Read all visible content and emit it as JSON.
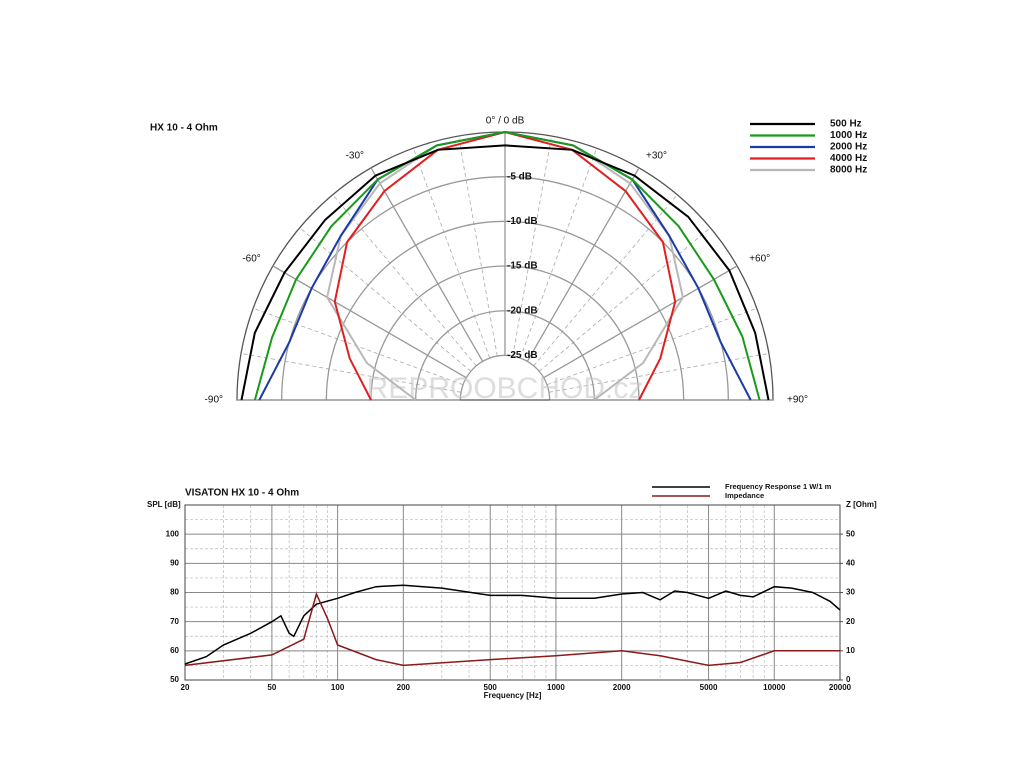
{
  "chart_data": [
    {
      "type": "polar",
      "title": "HX 10 - 4 Ohm",
      "watermark": "REPROOBCHOD.cz",
      "rlim": [
        -30,
        0
      ],
      "rticks": [
        {
          "value": -5,
          "label": "-5 dB"
        },
        {
          "value": -10,
          "label": "-10 dB"
        },
        {
          "value": -15,
          "label": "-15 dB"
        },
        {
          "value": -20,
          "label": "-20 dB"
        },
        {
          "value": -25,
          "label": "-25 dB"
        }
      ],
      "alim": [
        -90,
        90
      ],
      "angleticks": [
        {
          "value": -90,
          "label": "-90°"
        },
        {
          "value": -60,
          "label": "-60°"
        },
        {
          "value": -30,
          "label": "-30°"
        },
        {
          "value": 0,
          "label": "0° / 0 dB"
        },
        {
          "value": 30,
          "label": "+30°"
        },
        {
          "value": 60,
          "label": "+60°"
        },
        {
          "value": 90,
          "label": "+90°"
        }
      ],
      "legend": "top-right",
      "angles": [
        -90,
        -75,
        -60,
        -45,
        -30,
        -15,
        0,
        15,
        30,
        45,
        60,
        75,
        90
      ],
      "series": [
        {
          "name": "500 Hz",
          "color": "#000000",
          "values": [
            -0.5,
            -1,
            -1.5,
            -1.5,
            -1,
            -1,
            -1.5,
            -1,
            -1,
            -1,
            -1,
            -1,
            -0.5
          ]
        },
        {
          "name": "1000 Hz",
          "color": "#1a9a1a",
          "values": [
            -2,
            -3,
            -3,
            -2.5,
            -1.5,
            -0.5,
            0,
            -0.5,
            -1.5,
            -2.5,
            -3,
            -2.5,
            -1.5
          ]
        },
        {
          "name": "2000 Hz",
          "color": "#1a3aa8",
          "values": [
            -2.5,
            -5,
            -5,
            -4,
            -1.5,
            -0.5,
            0,
            -0.5,
            -1.5,
            -4,
            -5,
            -5,
            -2.5
          ]
        },
        {
          "name": "4000 Hz",
          "color": "#e02020",
          "values": [
            -15,
            -12,
            -8,
            -5,
            -3,
            -1,
            0,
            -1,
            -3,
            -5,
            -8,
            -12,
            -15
          ]
        },
        {
          "name": "8000 Hz",
          "color": "#b8b8b8",
          "values": [
            -20,
            -14,
            -7,
            -4,
            -2,
            -0.5,
            0,
            -0.5,
            -2,
            -4,
            -7,
            -14,
            -20
          ]
        }
      ]
    },
    {
      "type": "line",
      "title": "VISATON HX 10 - 4 Ohm",
      "xlabel": "Frequency [Hz]",
      "ylabel": "SPL [dB]",
      "y2label": "Z [Ohm]",
      "log_x": true,
      "grid": true,
      "legend": "top-right",
      "xlim": [
        20,
        20000
      ],
      "xticks": [
        20,
        50,
        100,
        200,
        500,
        1000,
        2000,
        5000,
        10000,
        20000
      ],
      "ylim": [
        50,
        110
      ],
      "yticks": [
        50,
        60,
        70,
        80,
        90,
        100
      ],
      "y2lim": [
        0,
        60
      ],
      "y2ticks": [
        0,
        10,
        20,
        30,
        40,
        50
      ],
      "series": [
        {
          "name": "Frequency Response 1 W/1 m",
          "color": "#000000",
          "x": [
            20,
            25,
            30,
            40,
            50,
            55,
            60,
            63,
            70,
            80,
            100,
            120,
            150,
            200,
            300,
            500,
            700,
            1000,
            1500,
            2000,
            2500,
            3000,
            3500,
            4000,
            5000,
            6000,
            7000,
            8000,
            10000,
            12000,
            15000,
            18000,
            20000
          ],
          "values": [
            55.5,
            58,
            62,
            66,
            70,
            72,
            66,
            65,
            72,
            76,
            78,
            80,
            82,
            82.5,
            81.5,
            79,
            79,
            78,
            78,
            79.5,
            80,
            77.5,
            80.5,
            80,
            78,
            80.5,
            79,
            78.5,
            82,
            81.5,
            80,
            77,
            74
          ]
        },
        {
          "name": "Impedance",
          "color": "#8b1a1a",
          "axis": "y2",
          "x": [
            20,
            50,
            70,
            80,
            90,
            100,
            150,
            200,
            500,
            1000,
            2000,
            3000,
            5000,
            7000,
            10000,
            20000
          ],
          "values": [
            5,
            8.6,
            14,
            29.5,
            21,
            12,
            7,
            5,
            7,
            8.3,
            10,
            8.3,
            5,
            6,
            10,
            10
          ]
        }
      ]
    }
  ]
}
